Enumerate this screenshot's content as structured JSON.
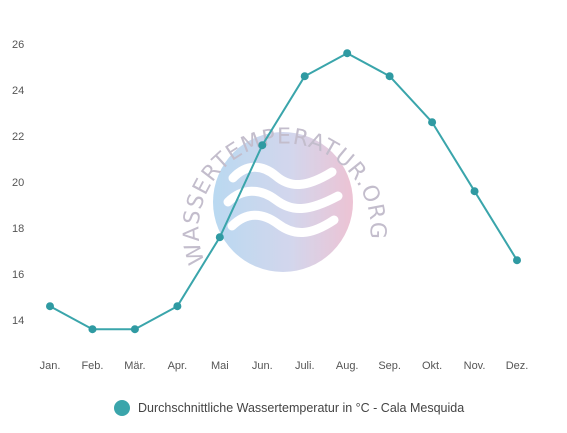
{
  "chart_data": {
    "type": "line",
    "categories": [
      "Jan.",
      "Feb.",
      "Mär.",
      "Apr.",
      "Mai",
      "Jun.",
      "Juli.",
      "Aug.",
      "Sep.",
      "Okt.",
      "Nov.",
      "Dez."
    ],
    "series": [
      {
        "name": "Durchschnittliche Wassertemperatur in °C - Cala Mesquida",
        "values": [
          14.6,
          13.6,
          13.6,
          14.6,
          17.6,
          21.6,
          24.6,
          25.6,
          24.6,
          22.6,
          19.6,
          16.6
        ]
      }
    ],
    "y_ticks": [
      "14",
      "16",
      "18",
      "20",
      "22",
      "24",
      "26"
    ],
    "ylim": [
      12.5,
      26.9
    ],
    "grid": false,
    "legend_position": "bottom",
    "title": "",
    "xlabel": "",
    "ylabel": ""
  },
  "colors": {
    "line": "#3aa5ab",
    "marker": "#2f9aa2",
    "tick_text": "#555555"
  },
  "watermark": {
    "text": "WASSERTEMPERATUR.ORG",
    "icon": "waves-logo"
  }
}
